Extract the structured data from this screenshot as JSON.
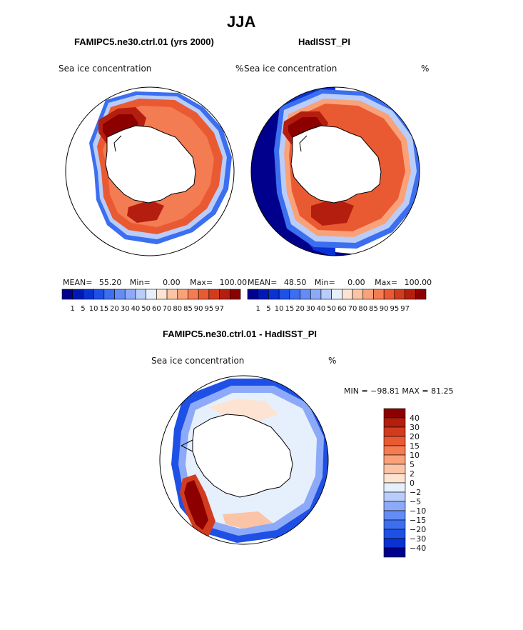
{
  "figure": {
    "title": "JJA"
  },
  "panels": [
    {
      "title": "FAMIPC5.ne30.ctrl.01 (yrs 2000)",
      "field": "Sea ice concentration",
      "units": "%",
      "stats": {
        "mean_label": "MEAN=",
        "mean": "55.20",
        "min_label": "Min=",
        "min": "0.00",
        "max_label": "Max=",
        "max": "100.00"
      }
    },
    {
      "title": "HadISST_PI",
      "field": "Sea ice concentration",
      "units": "%",
      "stats": {
        "mean_label": "MEAN=",
        "mean": "48.50",
        "min_label": "Min=",
        "min": "0.00",
        "max_label": "Max=",
        "max": "100.00"
      }
    },
    {
      "title": "FAMIPC5.ne30.ctrl.01 - HadISST_PI",
      "field": "Sea ice concentration",
      "units": "%",
      "minmax": "MIN = −98.81 MAX =  81.25"
    }
  ],
  "colorbar_abs": {
    "labels": [
      "1",
      "5",
      "10",
      "15",
      "20",
      "30",
      "40",
      "50",
      "60",
      "70",
      "80",
      "85",
      "90",
      "95",
      "97"
    ],
    "colors": [
      "#00008c",
      "#0019b4",
      "#0a32d2",
      "#1e50e6",
      "#3c6ef0",
      "#648cf5",
      "#8caaf8",
      "#b9cdfa",
      "#e6effc",
      "#fde4d2",
      "#fcc4a6",
      "#f9a27a",
      "#f47c52",
      "#ea5a32",
      "#d23c1e",
      "#b41e0f",
      "#8c0000"
    ]
  },
  "colorbar_diff": {
    "labels": [
      "40",
      "30",
      "20",
      "15",
      "10",
      "5",
      "2",
      "0",
      "−2",
      "−5",
      "−10",
      "−15",
      "−20",
      "−30",
      "−40"
    ],
    "colors": [
      "#8c0000",
      "#b41e0f",
      "#d23c1e",
      "#ea5a32",
      "#f47c52",
      "#f9a27a",
      "#fcc4a6",
      "#fde4d2",
      "#e6effc",
      "#b9cdfa",
      "#8caaf8",
      "#648cf5",
      "#3c6ef0",
      "#1e50e6",
      "#0a32d2",
      "#00008c"
    ]
  }
}
